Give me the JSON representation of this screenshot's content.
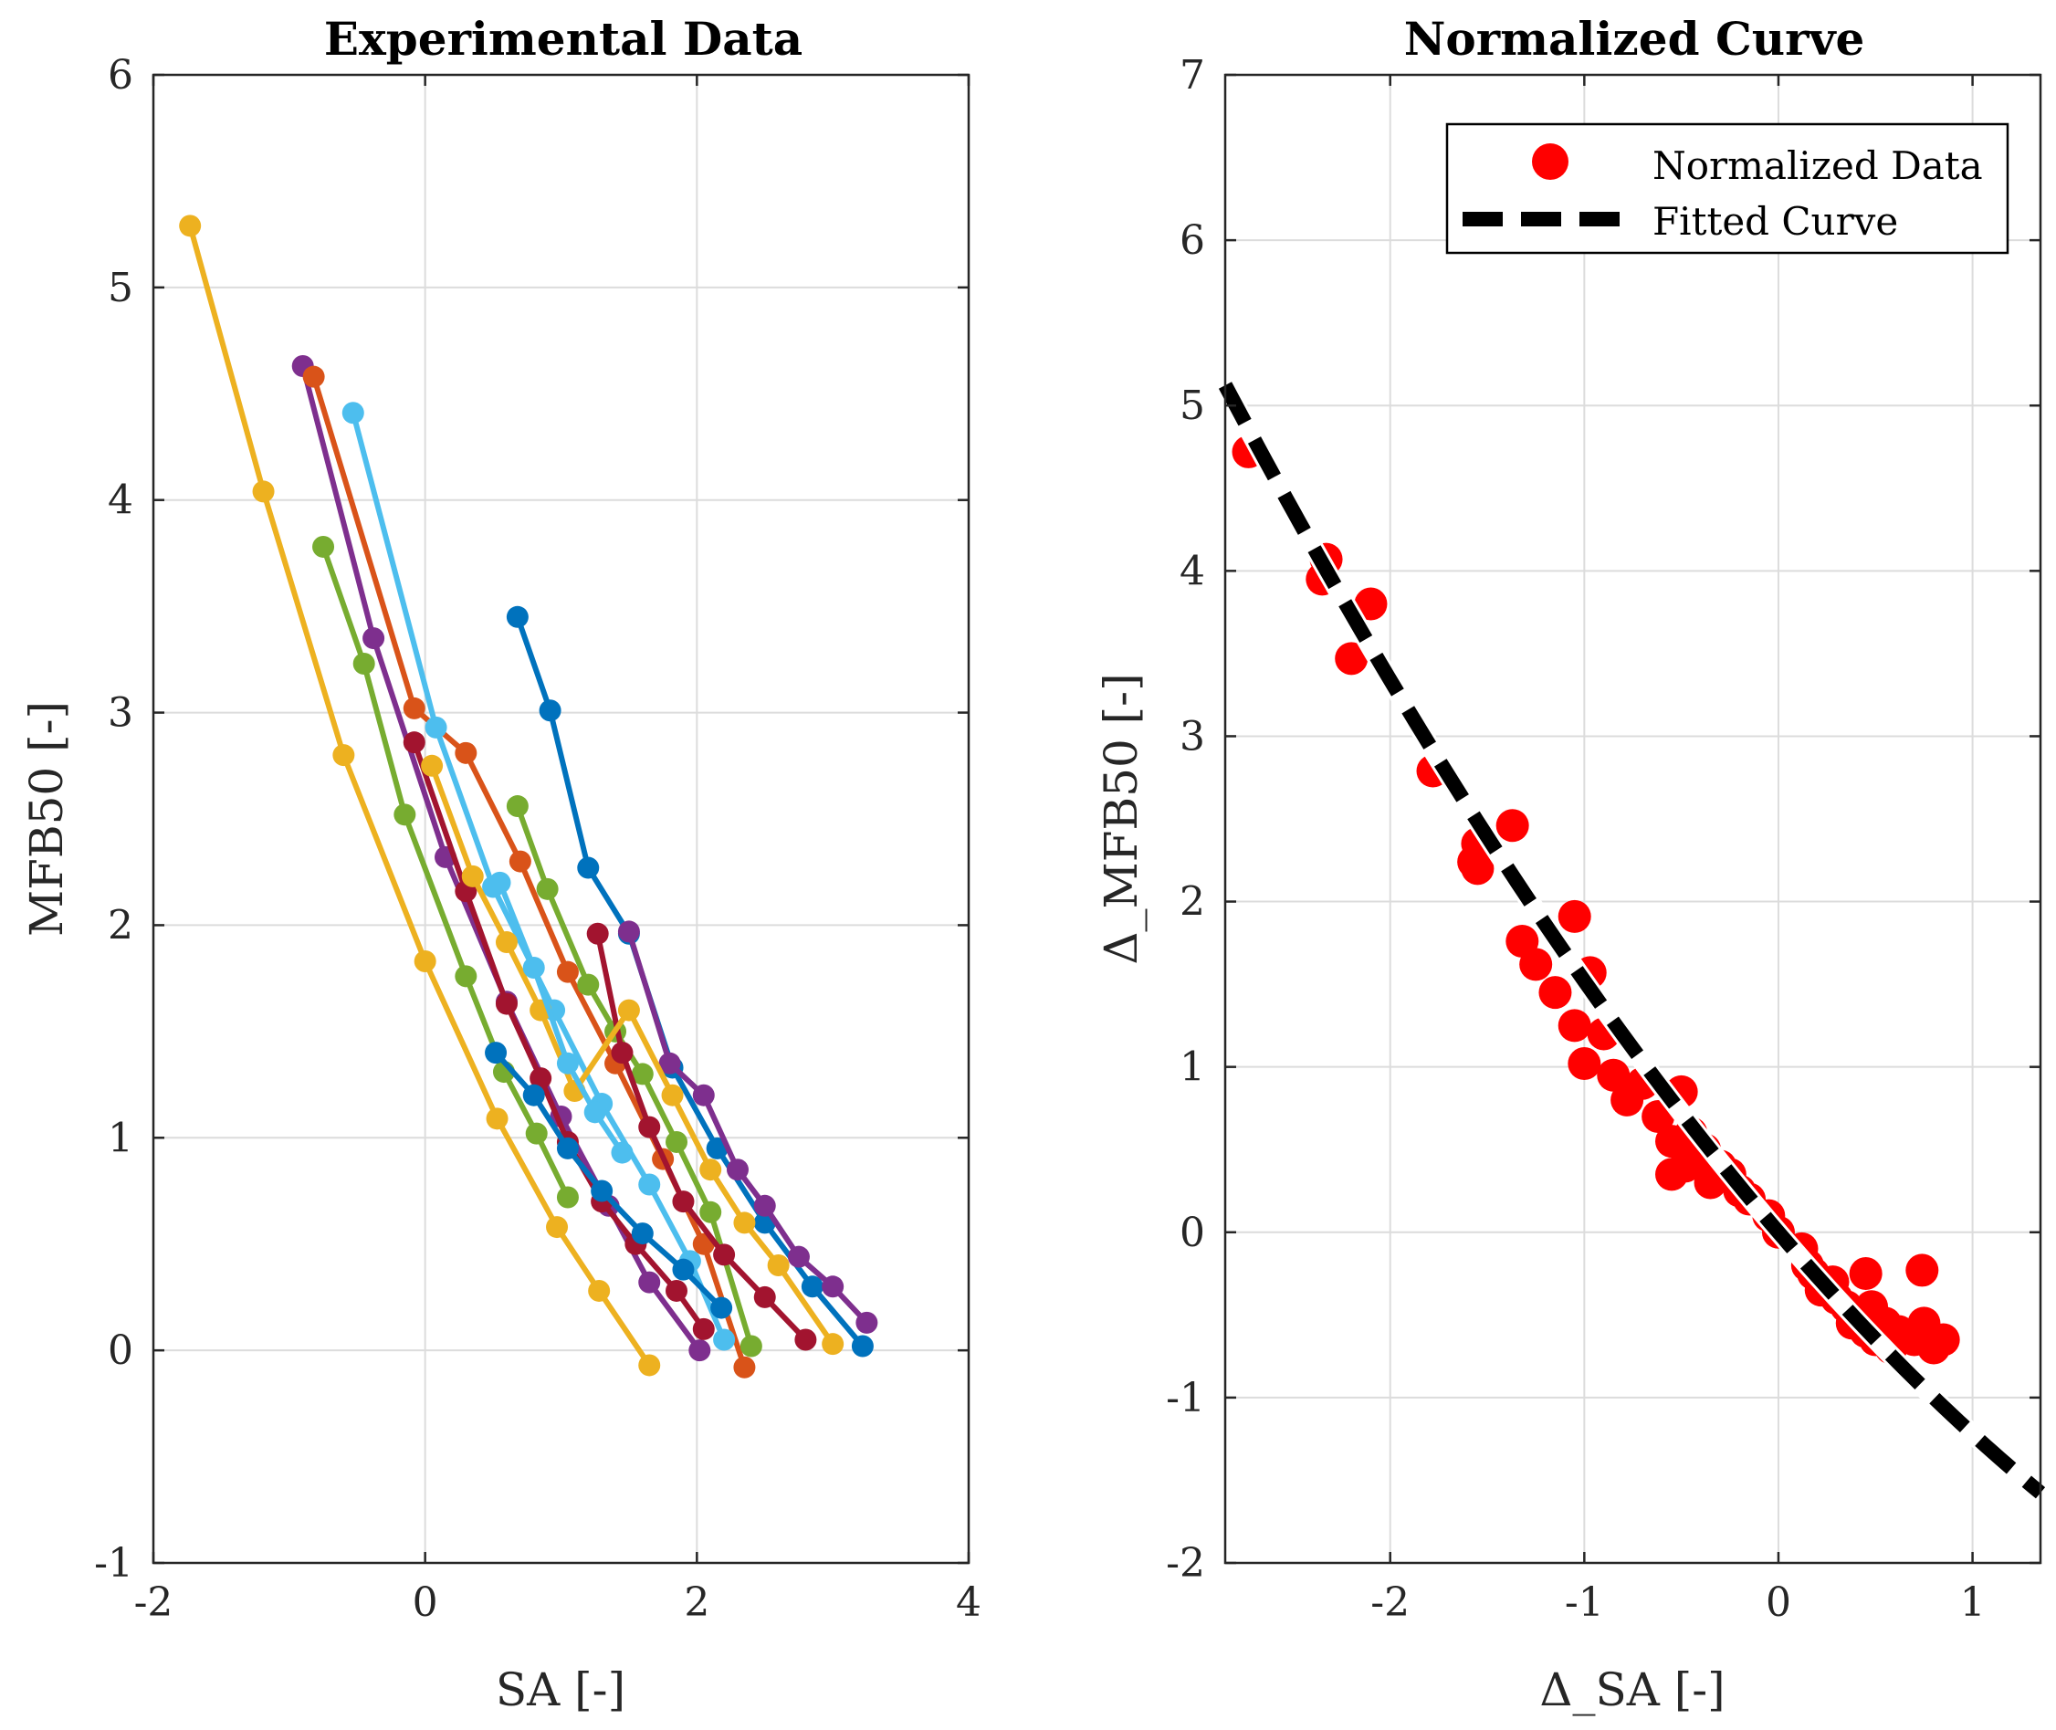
{
  "chart_data": [
    {
      "type": "line",
      "title": "Experimental Data",
      "xlabel": "SA [-]",
      "ylabel": "MFB50 [-]",
      "xlim": [
        -2,
        4
      ],
      "ylim": [
        -1,
        6
      ],
      "xticks": [
        -2,
        0,
        2,
        4
      ],
      "yticks": [
        -1,
        0,
        1,
        2,
        3,
        4,
        5,
        6
      ],
      "xtick_labels": [
        "-2",
        "0",
        "2",
        "4"
      ],
      "ytick_labels": [
        "-1",
        "0",
        "1",
        "2",
        "3",
        "4",
        "5",
        "6"
      ],
      "grid": true,
      "series": [
        {
          "name": "s1",
          "color": "#EDB120",
          "x": [
            -1.73,
            -1.19,
            -0.6,
            0.0,
            0.53,
            0.97,
            1.28,
            1.65
          ],
          "y": [
            5.29,
            4.04,
            2.8,
            1.83,
            1.09,
            0.58,
            0.28,
            -0.07
          ]
        },
        {
          "name": "s2",
          "color": "#7E2F8E",
          "x": [
            -0.9,
            -0.38,
            0.15,
            0.6,
            1.0,
            1.35,
            1.65,
            2.02
          ],
          "y": [
            4.63,
            3.35,
            2.32,
            1.64,
            1.1,
            0.68,
            0.32,
            0.0
          ]
        },
        {
          "name": "s3",
          "color": "#D95319",
          "x": [
            -0.82,
            -0.08,
            0.3,
            0.7,
            1.05,
            1.4,
            1.75,
            2.05,
            2.35
          ],
          "y": [
            4.58,
            3.02,
            2.81,
            2.3,
            1.78,
            1.35,
            0.9,
            0.5,
            -0.08
          ]
        },
        {
          "name": "s4",
          "color": "#4DBEEE",
          "x": [
            -0.53,
            0.08,
            0.5,
            0.95,
            1.3,
            1.65,
            1.95,
            2.2
          ],
          "y": [
            4.41,
            2.93,
            2.18,
            1.6,
            1.16,
            0.78,
            0.42,
            0.05
          ]
        },
        {
          "name": "s5",
          "color": "#77AC30",
          "x": [
            -0.75,
            -0.45,
            -0.15,
            0.3,
            0.58,
            0.82,
            1.05
          ],
          "y": [
            3.78,
            3.23,
            2.52,
            1.76,
            1.31,
            1.02,
            0.72
          ]
        },
        {
          "name": "s6",
          "color": "#77AC30",
          "x": [
            0.68,
            0.9,
            1.2,
            1.4,
            1.6,
            1.85,
            2.1,
            2.4
          ],
          "y": [
            2.56,
            2.17,
            1.72,
            1.5,
            1.3,
            0.98,
            0.65,
            0.02
          ]
        },
        {
          "name": "s7",
          "color": "#0072BD",
          "x": [
            0.68,
            0.92,
            1.2,
            1.5,
            1.82,
            2.15,
            2.5,
            2.85,
            3.22
          ],
          "y": [
            3.45,
            3.01,
            2.27,
            1.96,
            1.33,
            0.95,
            0.6,
            0.3,
            0.02
          ]
        },
        {
          "name": "s8",
          "color": "#A2142F",
          "x": [
            -0.08,
            0.3,
            0.6,
            0.85,
            1.05,
            1.3,
            1.55,
            1.85,
            2.05
          ],
          "y": [
            2.86,
            2.16,
            1.63,
            1.28,
            0.98,
            0.7,
            0.5,
            0.28,
            0.1
          ]
        },
        {
          "name": "s9",
          "color": "#A2142F",
          "x": [
            1.27,
            1.45,
            1.65,
            1.9,
            2.2,
            2.5,
            2.8
          ],
          "y": [
            1.96,
            1.4,
            1.05,
            0.7,
            0.45,
            0.25,
            0.05
          ]
        },
        {
          "name": "s10",
          "color": "#7E2F8E",
          "x": [
            1.5,
            1.8,
            2.05,
            2.3,
            2.5,
            2.75,
            3.0,
            3.25
          ],
          "y": [
            1.97,
            1.35,
            1.2,
            0.85,
            0.68,
            0.44,
            0.3,
            0.13
          ]
        },
        {
          "name": "s11",
          "color": "#EDB120",
          "x": [
            0.05,
            0.35,
            0.6,
            0.85,
            1.1,
            1.5,
            1.82,
            2.1,
            2.35,
            2.6,
            3.0
          ],
          "y": [
            2.75,
            2.23,
            1.92,
            1.6,
            1.22,
            1.6,
            1.2,
            0.85,
            0.6,
            0.4,
            0.03
          ]
        },
        {
          "name": "s12",
          "color": "#0072BD",
          "x": [
            0.52,
            0.8,
            1.05,
            1.3,
            1.6,
            1.9,
            2.18
          ],
          "y": [
            1.4,
            1.2,
            0.95,
            0.75,
            0.55,
            0.38,
            0.2
          ]
        },
        {
          "name": "s13",
          "color": "#4DBEEE",
          "x": [
            0.55,
            0.8,
            1.05,
            1.25,
            1.45
          ],
          "y": [
            2.2,
            1.8,
            1.35,
            1.12,
            0.93
          ]
        }
      ]
    },
    {
      "type": "scatter",
      "title": "Normalized Curve",
      "xlabel": "Δ_SA [-]",
      "ylabel": "Δ_MFB50 [-]",
      "xlim": [
        -2.85,
        1.35
      ],
      "ylim": [
        -2,
        7
      ],
      "xticks": [
        -2,
        -1,
        0,
        1
      ],
      "yticks": [
        -2,
        -1,
        0,
        1,
        2,
        3,
        4,
        5,
        6,
        7
      ],
      "xtick_labels": [
        "-2",
        "-1",
        "0",
        "1"
      ],
      "ytick_labels": [
        "-2",
        "-1",
        "0",
        "1",
        "2",
        "3",
        "4",
        "5",
        "6",
        "7"
      ],
      "grid": true,
      "legend": {
        "position": "top-right",
        "entries": [
          "Normalized Data",
          "Fitted Curve"
        ]
      },
      "series": [
        {
          "name": "Normalized Data",
          "color": "#FF0000",
          "x": [
            -2.73,
            -2.33,
            -2.35,
            -2.2,
            -2.1,
            -1.78,
            -1.55,
            -1.57,
            -1.37,
            -1.55,
            -1.32,
            -1.25,
            -1.15,
            -1.05,
            -1.05,
            -0.97,
            -1.0,
            -0.9,
            -0.85,
            -0.78,
            -0.7,
            -0.62,
            -0.55,
            -0.5,
            -0.48,
            -0.55,
            -0.45,
            -0.42,
            -0.38,
            -0.35,
            -0.3,
            -0.25,
            -0.2,
            -0.15,
            -0.05,
            0.0,
            0.12,
            0.15,
            0.18,
            0.22,
            0.28,
            0.3,
            0.35,
            0.38,
            0.42,
            0.45,
            0.48,
            0.5,
            0.55,
            0.58,
            0.62,
            0.7,
            0.75,
            0.8,
            0.85,
            0.74,
            0.45
          ],
          "y": [
            4.72,
            4.07,
            3.95,
            3.47,
            3.8,
            2.79,
            2.35,
            2.24,
            2.46,
            2.2,
            1.76,
            1.62,
            1.45,
            1.91,
            1.25,
            1.57,
            1.02,
            1.2,
            0.95,
            0.8,
            0.9,
            0.7,
            0.55,
            0.85,
            0.4,
            0.35,
            0.6,
            0.45,
            0.5,
            0.3,
            0.4,
            0.35,
            0.25,
            0.2,
            0.1,
            0.0,
            -0.1,
            -0.2,
            -0.25,
            -0.35,
            -0.3,
            -0.4,
            -0.45,
            -0.55,
            -0.5,
            -0.6,
            -0.45,
            -0.65,
            -0.55,
            -0.7,
            -0.6,
            -0.65,
            -0.55,
            -0.7,
            -0.65,
            -0.23,
            -0.25
          ]
        },
        {
          "name": "Fitted Curve",
          "color": "#000000",
          "style": "dashed",
          "function": "y = 0.15*x^2 - 1.37*x"
        }
      ]
    }
  ]
}
